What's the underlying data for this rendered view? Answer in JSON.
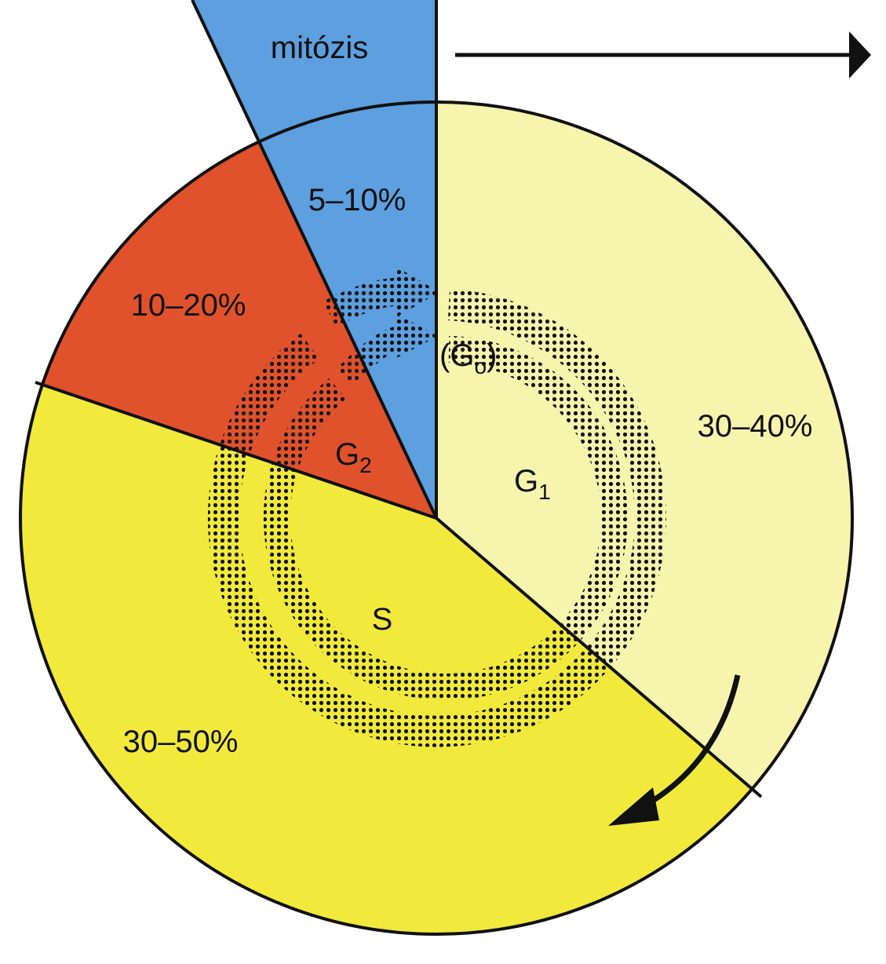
{
  "labels": {
    "mitosis": "mitózis",
    "mitosis_share": "5–10%",
    "g2_share": "10–20%",
    "g1_share": "30–40%",
    "s_share": "30–50%"
  },
  "phases": {
    "g1": {
      "letter": "G",
      "sub": "1"
    },
    "g2": {
      "letter": "G",
      "sub": "2"
    },
    "g0": {
      "open": "(",
      "letter": "G",
      "sub": "o",
      "close": ")"
    },
    "s": "S"
  }
}
